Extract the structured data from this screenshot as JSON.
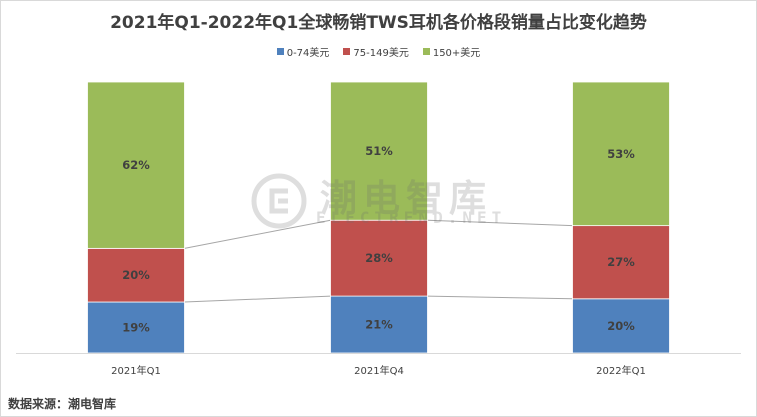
{
  "chart_data": {
    "type": "bar",
    "stacked": true,
    "title": "2021年Q1-2022年Q1全球畅销TWS耳机各价格段销量占比变化趋势",
    "categories": [
      "2021年Q1",
      "2021年Q4",
      "2022年Q1"
    ],
    "series": [
      {
        "name": "0-74美元",
        "color": "#4f81bd",
        "values": [
          19,
          21,
          20
        ],
        "labels": [
          "19%",
          "21%",
          "20%"
        ]
      },
      {
        "name": "75-149美元",
        "color": "#c0504d",
        "values": [
          20,
          28,
          27
        ],
        "labels": [
          "20%",
          "28%",
          "27%"
        ]
      },
      {
        "name": "150+美元",
        "color": "#9bbb59",
        "values": [
          62,
          51,
          53
        ],
        "labels": [
          "62%",
          "51%",
          "53%"
        ]
      }
    ],
    "ylim": [
      0,
      100
    ],
    "unit": "%",
    "legend_position": "top",
    "grid": false,
    "series_connector_lines": true
  },
  "source_text": "数据来源：潮电智库",
  "watermark": {
    "cn": "潮电智库",
    "en": "ELECTREND.NET"
  }
}
